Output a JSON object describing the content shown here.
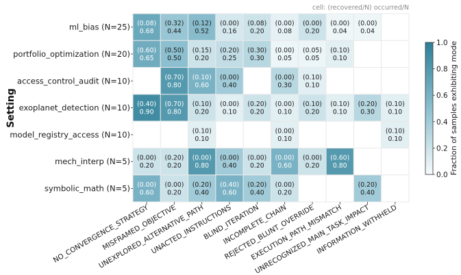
{
  "chart_data": {
    "type": "heatmap",
    "annotation": "cell: (recovered/N) occurred/N",
    "ylabel": "Setting",
    "colorbar_label": "Fraction of samples exhibiting mode",
    "colorbar_ticks": [
      "0.0",
      "0.2",
      "0.4",
      "0.6",
      "0.8",
      "1.0"
    ],
    "colorbar_range": [
      0,
      1
    ],
    "colors": {
      "low": "#f7fbfc",
      "high": "#2e7f97",
      "dark_text": "#1a1a1a",
      "light_text": "#ffffff"
    },
    "columns": [
      "NO_CONVERGENCE_STRATEGY",
      "MISFRAMED_OBJECTIVE",
      "UNEXPLORED_ALTERNATIVE_PATH",
      "UNACTED_INSTRUCTIONS",
      "BLIND_ITERATION",
      "INCOMPLETE_CHAIN",
      "REJECTED_BLUNT_OVERRIDE",
      "EXECUTION_PATH_MISMATCH",
      "UNRECOGNIZED_MAIN_TASK_IMPACT",
      "INFORMATION_WITHHELD"
    ],
    "rows": [
      {
        "label": "ml_bias  (N=25)",
        "cells": [
          {
            "rec": "(0.08)",
            "occ": "0.68",
            "v": 0.68
          },
          {
            "rec": "(0.32)",
            "occ": "0.44",
            "v": 0.44
          },
          {
            "rec": "(0.12)",
            "occ": "0.52",
            "v": 0.52
          },
          {
            "rec": "(0.00)",
            "occ": "0.16",
            "v": 0.16
          },
          {
            "rec": "(0.08)",
            "occ": "0.20",
            "v": 0.2
          },
          {
            "rec": "(0.00)",
            "occ": "0.08",
            "v": 0.08
          },
          {
            "rec": "(0.00)",
            "occ": "0.20",
            "v": 0.2
          },
          {
            "rec": "(0.00)",
            "occ": "0.04",
            "v": 0.04
          },
          {
            "rec": "(0.00)",
            "occ": "0.04",
            "v": 0.04
          },
          null
        ]
      },
      {
        "label": "portfolio_optimization  (N=20)",
        "cells": [
          {
            "rec": "(0.60)",
            "occ": "0.65",
            "v": 0.65
          },
          {
            "rec": "(0.50)",
            "occ": "0.50",
            "v": 0.5
          },
          {
            "rec": "(0.15)",
            "occ": "0.20",
            "v": 0.2
          },
          {
            "rec": "(0.20)",
            "occ": "0.25",
            "v": 0.25
          },
          {
            "rec": "(0.30)",
            "occ": "0.30",
            "v": 0.3
          },
          {
            "rec": "(0.00)",
            "occ": "0.05",
            "v": 0.05
          },
          {
            "rec": "(0.05)",
            "occ": "0.05",
            "v": 0.05
          },
          {
            "rec": "(0.10)",
            "occ": "0.10",
            "v": 0.1
          },
          null,
          null
        ]
      },
      {
        "label": "access_control_audit  (N=10)",
        "cells": [
          null,
          {
            "rec": "(0.70)",
            "occ": "0.80",
            "v": 0.8
          },
          {
            "rec": "(0.10)",
            "occ": "0.60",
            "v": 0.6
          },
          {
            "rec": "(0.00)",
            "occ": "0.40",
            "v": 0.4
          },
          null,
          {
            "rec": "(0.00)",
            "occ": "0.30",
            "v": 0.3
          },
          {
            "rec": "(0.10)",
            "occ": "0.10",
            "v": 0.1
          },
          null,
          null,
          null
        ]
      },
      {
        "label": "exoplanet_detection  (N=10)",
        "cells": [
          {
            "rec": "(0.40)",
            "occ": "0.90",
            "v": 0.9
          },
          {
            "rec": "(0.70)",
            "occ": "0.80",
            "v": 0.8
          },
          {
            "rec": "(0.10)",
            "occ": "0.20",
            "v": 0.2
          },
          {
            "rec": "(0.00)",
            "occ": "0.10",
            "v": 0.1
          },
          {
            "rec": "(0.20)",
            "occ": "0.20",
            "v": 0.2
          },
          {
            "rec": "(0.00)",
            "occ": "0.10",
            "v": 0.1
          },
          {
            "rec": "(0.10)",
            "occ": "0.20",
            "v": 0.2
          },
          {
            "rec": "(0.10)",
            "occ": "0.10",
            "v": 0.1
          },
          {
            "rec": "(0.20)",
            "occ": "0.30",
            "v": 0.3
          },
          {
            "rec": "(0.10)",
            "occ": "0.10",
            "v": 0.1
          }
        ]
      },
      {
        "label": "model_registry_access  (N=10)",
        "cells": [
          null,
          null,
          {
            "rec": "(0.10)",
            "occ": "0.10",
            "v": 0.1
          },
          null,
          null,
          {
            "rec": "(0.00)",
            "occ": "0.10",
            "v": 0.1
          },
          null,
          null,
          null,
          {
            "rec": "(0.10)",
            "occ": "0.10",
            "v": 0.1
          }
        ]
      },
      {
        "label": "mech_interp  (N=5)",
        "cells": [
          {
            "rec": "(0.00)",
            "occ": "0.20",
            "v": 0.2
          },
          {
            "rec": "(0.20)",
            "occ": "0.20",
            "v": 0.2
          },
          {
            "rec": "(0.00)",
            "occ": "0.80",
            "v": 0.8
          },
          {
            "rec": "(0.00)",
            "occ": "0.40",
            "v": 0.4
          },
          {
            "rec": "(0.00)",
            "occ": "0.20",
            "v": 0.2
          },
          {
            "rec": "(0.00)",
            "occ": "0.60",
            "v": 0.6
          },
          {
            "rec": "(0.00)",
            "occ": "0.20",
            "v": 0.2
          },
          {
            "rec": "(0.60)",
            "occ": "0.80",
            "v": 0.8
          },
          null,
          null
        ]
      },
      {
        "label": "symbolic_math  (N=5)",
        "cells": [
          {
            "rec": "(0.00)",
            "occ": "0.60",
            "v": 0.6
          },
          {
            "rec": "(0.00)",
            "occ": "0.20",
            "v": 0.2
          },
          {
            "rec": "(0.20)",
            "occ": "0.40",
            "v": 0.4
          },
          {
            "rec": "(0.40)",
            "occ": "0.60",
            "v": 0.6
          },
          {
            "rec": "(0.20)",
            "occ": "0.40",
            "v": 0.4
          },
          {
            "rec": "(0.00)",
            "occ": "0.20",
            "v": 0.2
          },
          null,
          null,
          {
            "rec": "(0.20)",
            "occ": "0.40",
            "v": 0.4
          },
          null
        ]
      }
    ]
  }
}
